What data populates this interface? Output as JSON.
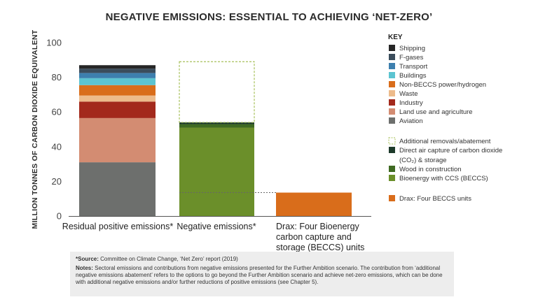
{
  "title": "NEGATIVE EMISSIONS: ESSENTIAL TO ACHIEVING ‘NET-ZERO’",
  "source_label": "*Source:",
  "source_text": "Committee on Climate Change, ‘Net Zero’ report (2019)",
  "notes_label": "Notes:",
  "notes_text": "Sectoral emissions and contributions from negative emissions presented for the Further Ambition scenario. The contribution from ‘additional negative emissions abatement’ refers to the options to go beyond the Further Ambition scenario and achieve net-zero emissions, which can be done with additional negative emissions and/or further reductions of positive emissions (see Chapter 5).",
  "chart_data": {
    "type": "bar",
    "stacked": true,
    "ylabel": "MILLION TONNES OF CARBON DIOXIDE EQUIVALENT",
    "ylim": [
      0,
      100
    ],
    "yticks": [
      0,
      20,
      40,
      60,
      80,
      100
    ],
    "grid": false,
    "legend_title": "KEY",
    "legend_position": "right",
    "categories": [
      [
        "Residual positive emissions*"
      ],
      [
        "Negative emissions*"
      ],
      [
        "Drax: Four Bioenergy",
        "carbon capture and",
        "storage (BECCS) units"
      ]
    ],
    "bars": [
      {
        "segments": [
          {
            "name": "Aviation",
            "value": 31,
            "color": "#6d6f6d"
          },
          {
            "name": "Land use and agriculture",
            "value": 25.5,
            "color": "#d38c72"
          },
          {
            "name": "Industry",
            "value": 9.5,
            "color": "#a3291c"
          },
          {
            "name": "Waste",
            "value": 3.5,
            "color": "#edbb8b"
          },
          {
            "name": "Non-BECCS power/hydrogen",
            "value": 6,
            "color": "#d96d1b"
          },
          {
            "name": "Buildings",
            "value": 4,
            "color": "#5cc4d1"
          },
          {
            "name": "Transport",
            "value": 3,
            "color": "#3d7fae"
          },
          {
            "name": "F-gases",
            "value": 2.5,
            "color": "#3b4d5c"
          },
          {
            "name": "Shipping",
            "value": 2,
            "color": "#262626"
          }
        ]
      },
      {
        "segments": [
          {
            "name": "Bioenergy with CCS (BECCS)",
            "value": 51,
            "color": "#6b8f2a"
          },
          {
            "name": "Wood in construction",
            "value": 2,
            "color": "#3f6a22"
          },
          {
            "name": "Direct air capture of carbon dioxide (CO₂) & storage",
            "value": 1,
            "color": "#1d3a2a"
          },
          {
            "name": "Additional removals/abatement",
            "value": 35,
            "color": "none",
            "outline": "#a7c05a",
            "dashed": true
          }
        ]
      },
      {
        "segments": [
          {
            "name": "Drax: Four BECCS units",
            "value": 13.5,
            "color": "#d96d1b"
          }
        ]
      }
    ],
    "legend": [
      {
        "label": "Shipping",
        "color": "#262626"
      },
      {
        "label": "F-gases",
        "color": "#3b4d5c"
      },
      {
        "label": "Transport",
        "color": "#3d7fae"
      },
      {
        "label": "Buildings",
        "color": "#5cc4d1"
      },
      {
        "label": "Non-BECCS power/hydrogen",
        "color": "#d96d1b"
      },
      {
        "label": "Waste",
        "color": "#edbb8b"
      },
      {
        "label": "Industry",
        "color": "#a3291c"
      },
      {
        "label": "Land use and agriculture",
        "color": "#d38c72"
      },
      {
        "label": "Aviation",
        "color": "#6d6f6d"
      },
      {
        "label": "",
        "color": "",
        "spacer": true
      },
      {
        "label": "Additional removals/abatement",
        "color": "none",
        "outline": "#a7c05a",
        "dashed": true
      },
      {
        "label": "Direct air capture of carbon dioxide",
        "label2": "(CO₂) & storage",
        "color": "#1d3a2a"
      },
      {
        "label": "Wood in construction",
        "color": "#3f6a22"
      },
      {
        "label": "Bioenergy with CCS (BECCS)",
        "color": "#6b8f2a"
      },
      {
        "label": "",
        "color": "",
        "spacer": true
      },
      {
        "label": "Drax: Four BECCS units",
        "color": "#d96d1b"
      }
    ]
  }
}
